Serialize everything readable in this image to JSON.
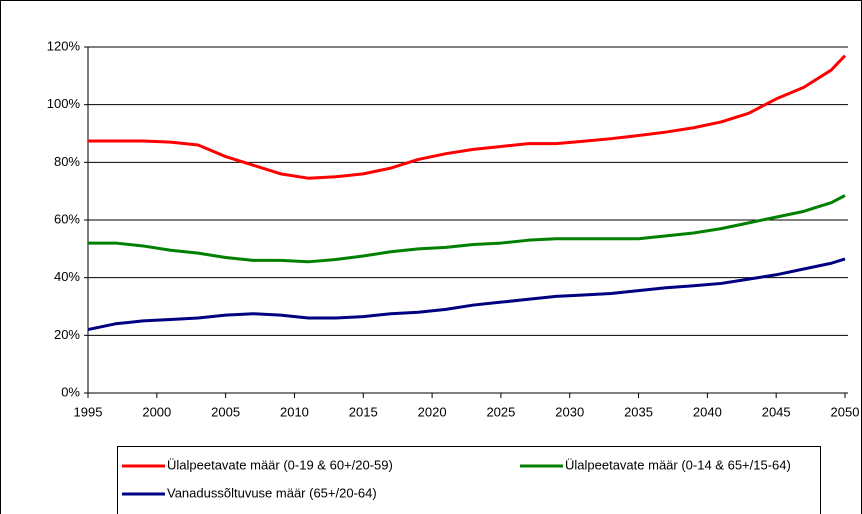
{
  "chart_data": {
    "type": "line",
    "x": [
      1995,
      1997,
      1999,
      2001,
      2003,
      2005,
      2007,
      2009,
      2011,
      2013,
      2015,
      2017,
      2019,
      2021,
      2023,
      2025,
      2027,
      2029,
      2031,
      2033,
      2035,
      2037,
      2039,
      2041,
      2043,
      2045,
      2047,
      2049,
      2050
    ],
    "series": [
      {
        "name": "Ülalpeetavate määr (0-19 & 60+/20-59)",
        "color": "#ff0000",
        "values": [
          87.4,
          87.4,
          87.4,
          87,
          86,
          82,
          79,
          76,
          74.5,
          75,
          76,
          78,
          81,
          83,
          84.5,
          85.5,
          86.5,
          86.5,
          87.3,
          88.2,
          89.3,
          90.5,
          92,
          94,
          97,
          102,
          106,
          112,
          117
        ]
      },
      {
        "name": "Ülalpeetavate määr (0-14 & 65+/15-64)",
        "color": "#008000",
        "values": [
          52,
          52,
          51,
          49.5,
          48.5,
          47,
          46,
          46,
          45.5,
          46.3,
          47.5,
          49,
          50,
          50.5,
          51.5,
          52,
          53,
          53.5,
          53.5,
          53.5,
          53.5,
          54.5,
          55.5,
          57,
          59,
          61,
          63,
          66,
          68.5
        ]
      },
      {
        "name": "Vanadussõltuvuse määr (65+/20-64)",
        "color": "#000080",
        "values": [
          22,
          24,
          25,
          25.5,
          26,
          27,
          27.5,
          27,
          26,
          26,
          26.5,
          27.5,
          28,
          29,
          30.5,
          31.5,
          32.5,
          33.5,
          34,
          34.5,
          35.5,
          36.5,
          37.2,
          38,
          39.5,
          41,
          43,
          45,
          46.5
        ]
      }
    ],
    "xlim": [
      1995,
      2050
    ],
    "xticks": [
      1995,
      2000,
      2005,
      2010,
      2015,
      2020,
      2025,
      2030,
      2035,
      2040,
      2045,
      2050
    ],
    "ylim": [
      0,
      120
    ],
    "yticks": [
      {
        "value": 0,
        "label": "0%"
      },
      {
        "value": 20,
        "label": "20%"
      },
      {
        "value": 40,
        "label": "40%"
      },
      {
        "value": 60,
        "label": "60%"
      },
      {
        "value": 80,
        "label": "80%"
      },
      {
        "value": 100,
        "label": "100%"
      },
      {
        "value": 120,
        "label": "120%"
      }
    ],
    "grid": true,
    "legend": "bottom"
  }
}
